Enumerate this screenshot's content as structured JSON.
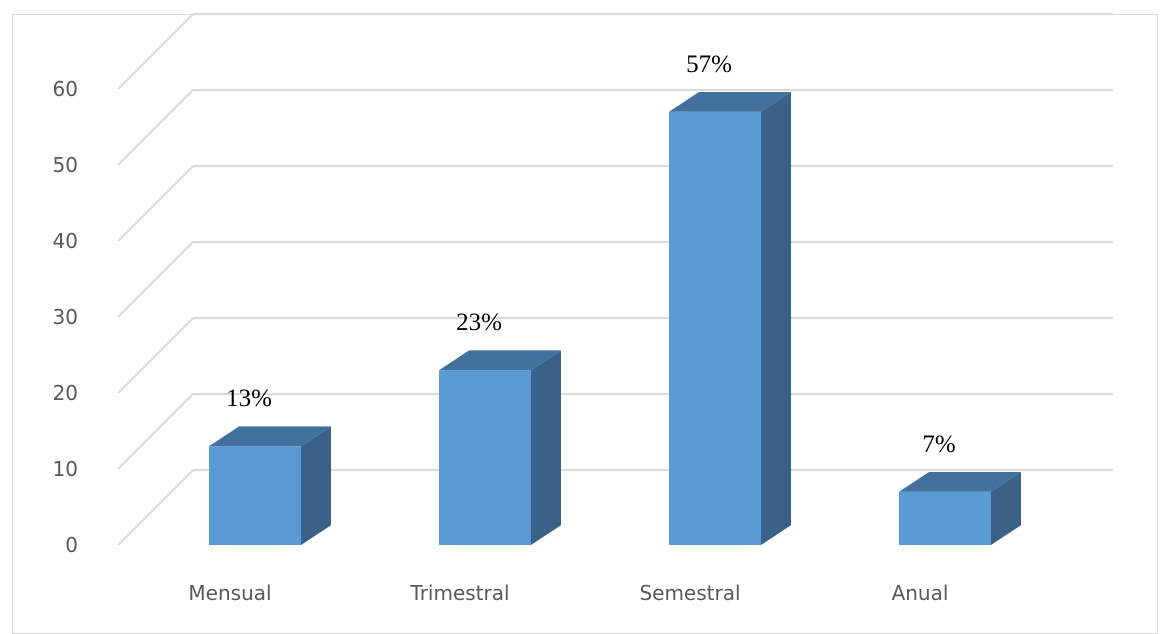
{
  "chart_data": {
    "type": "bar",
    "style": "3d-column",
    "categories": [
      "Mensual",
      "Trimestral",
      "Semestral",
      "Anual"
    ],
    "values": [
      13,
      23,
      57,
      7
    ],
    "data_labels": [
      "13%",
      "23%",
      "57%",
      "7%"
    ],
    "yticks": [
      "0",
      "10",
      "20",
      "30",
      "40",
      "50",
      "60"
    ],
    "ylim": [
      0,
      60
    ],
    "grid": true,
    "legend": "none",
    "colors": {
      "front": "#5b9bd5",
      "top": "#41719c",
      "side": "#3a6289",
      "grid": "#d9d9d9",
      "text": "#595959"
    }
  }
}
